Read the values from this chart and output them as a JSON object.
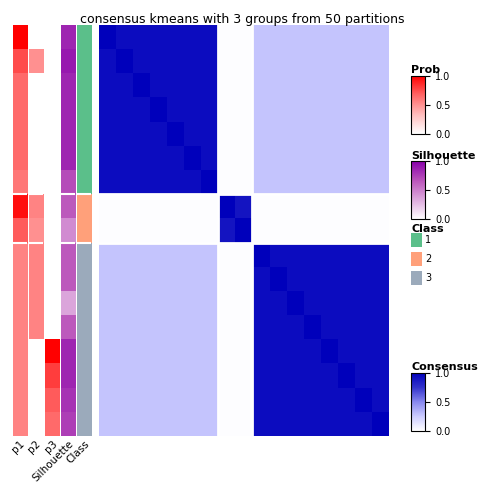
{
  "title": "consensus kmeans with 3 groups from 50 partitions",
  "title_fontsize": 9,
  "n_total": 17,
  "c1_size": 7,
  "c2_size": 2,
  "c3_size": 8,
  "p1_vals": [
    1.0,
    0.75,
    0.65,
    0.65,
    0.65,
    0.65,
    0.6,
    0.95,
    0.7,
    0.55,
    0.55,
    0.55,
    0.55,
    0.55,
    0.55,
    0.55,
    0.55
  ],
  "p2_vals": [
    0.0,
    0.5,
    0.0,
    0.0,
    0.0,
    0.0,
    0.0,
    0.55,
    0.5,
    0.55,
    0.55,
    0.55,
    0.55,
    0.0,
    0.0,
    0.0,
    0.0
  ],
  "p3_vals": [
    0.0,
    0.0,
    0.0,
    0.0,
    0.0,
    0.0,
    0.0,
    0.0,
    0.0,
    0.0,
    0.0,
    0.0,
    0.0,
    1.0,
    0.8,
    0.7,
    0.65
  ],
  "sil_vals": [
    0.85,
    0.9,
    0.85,
    0.85,
    0.85,
    0.85,
    0.7,
    0.65,
    0.45,
    0.65,
    0.65,
    0.35,
    0.65,
    0.85,
    0.85,
    0.8,
    0.75
  ],
  "class_vals": [
    1,
    1,
    1,
    1,
    1,
    1,
    1,
    2,
    2,
    3,
    3,
    3,
    3,
    3,
    3,
    3,
    3
  ],
  "class_color_1": "#5BBF8A",
  "class_color_2": "#FFA07A",
  "class_color_3": "#9BAABB",
  "cons_within_c1": 0.94,
  "cons_within_c2": 0.9,
  "cons_within_c3": 0.94,
  "cons_c1_c2": 0.01,
  "cons_c1_c3": 0.28,
  "cons_c2_c3": 0.01,
  "background_color": "#FFFFFF"
}
